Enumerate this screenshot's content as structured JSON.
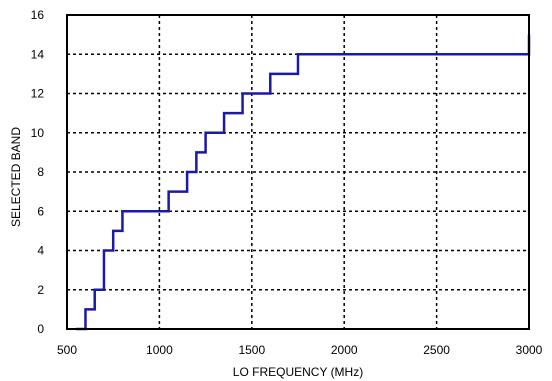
{
  "chart_data": {
    "type": "line",
    "title": "",
    "xlabel": "LO FREQUENCY (MHz)",
    "ylabel": "SELECTED BAND",
    "xlim": [
      500,
      3000
    ],
    "ylim": [
      0,
      16
    ],
    "xticks": [
      500,
      1000,
      1500,
      2000,
      2500,
      3000
    ],
    "yticks": [
      0,
      2,
      4,
      6,
      8,
      10,
      12,
      14,
      16
    ],
    "grid": true,
    "grid_style": "dotted",
    "line_style": "step",
    "series_color": "#1a1aa6",
    "series": [
      {
        "x": [
          550,
          600,
          650,
          700,
          750,
          800,
          1050,
          1150,
          1200,
          1250,
          1350,
          1450,
          1600,
          1750,
          3000
        ],
        "y": [
          0,
          1,
          2,
          4,
          5,
          6,
          7,
          8,
          9,
          10,
          11,
          12,
          13,
          14,
          15
        ]
      }
    ]
  }
}
